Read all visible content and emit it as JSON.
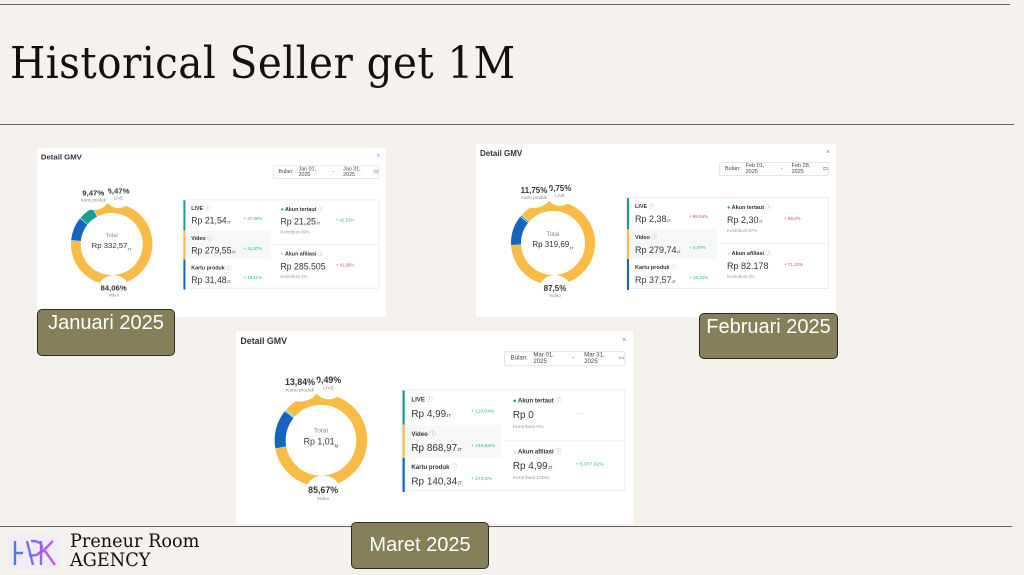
{
  "slide_title": "Historical Seller get 1M",
  "brand": {
    "line1": "Preneur Room",
    "line2": "AGENCY",
    "logo_text": "PR"
  },
  "colors": {
    "video": "#f8bb45",
    "kartu": "#1565c0",
    "live": "#1a9e8f",
    "up": "#2eb872",
    "down": "#e0475b"
  },
  "cards": [
    {
      "month_label": "Januari 2025",
      "title": "Detail GMV",
      "close": "×",
      "date_label": "Bulan:",
      "date_from": "Jan 01, 2025",
      "date_sep": "-",
      "date_to": "Jan 31, 2025",
      "total_label": "Total",
      "total_value": "Rp 332,57",
      "total_unit": "JT",
      "pct": {
        "kartu": "9,47%",
        "live": "6,47%",
        "video": "84,06%"
      },
      "pct_values": {
        "kartu": 9.47,
        "live": 6.47,
        "video": 84.06
      },
      "seg_labels": {
        "kartu": "Kartu produk",
        "live": "LIVE",
        "video": "Video"
      },
      "rows": [
        {
          "name": "LIVE",
          "value": "Rp 21,54",
          "unit": "JT",
          "change": "+ 37,99%",
          "dir": "up"
        },
        {
          "name": "Video",
          "value": "Rp 279,55",
          "unit": "JT",
          "change": "+ 31,57%",
          "dir": "up"
        },
        {
          "name": "Kartu produk",
          "value": "Rp 31,48",
          "unit": "JT",
          "change": "+ 10,11%",
          "dir": "up"
        }
      ],
      "accounts": [
        {
          "name": "Akun tertaut",
          "value": "Rp 21,25",
          "unit": "JT",
          "change": "+ 42,53%",
          "dir": "up",
          "kontribusi": "Kontribusi 99%"
        },
        {
          "name": "Akun afiliasi",
          "value": "Rp 285.505",
          "unit": "",
          "change": "+ 41,56%",
          "dir": "down",
          "kontribusi": "Kontribusi 1%"
        }
      ]
    },
    {
      "month_label": "Februari 2025",
      "title": "Detail GMV",
      "close": "×",
      "date_label": "Bulan:",
      "date_from": "Feb 01, 2025",
      "date_sep": "-",
      "date_to": "Feb 28, 2025",
      "total_label": "Total",
      "total_value": "Rp 319,69",
      "total_unit": "JT",
      "pct": {
        "kartu": "11,75%",
        "live": "0,75%",
        "video": "87,5%"
      },
      "pct_values": {
        "kartu": 11.75,
        "live": 0.75,
        "video": 87.5
      },
      "seg_labels": {
        "kartu": "Kartu produk",
        "live": "LIVE",
        "video": "Video"
      },
      "rows": [
        {
          "name": "LIVE",
          "value": "Rp 2,38",
          "unit": "JT",
          "change": "+ 88,94%",
          "dir": "down"
        },
        {
          "name": "Video",
          "value": "Rp 279,74",
          "unit": "JT",
          "change": "+ 0,07%",
          "dir": "up"
        },
        {
          "name": "Kartu produk",
          "value": "Rp 37,57",
          "unit": "JT",
          "change": "+ 19,34%",
          "dir": "up"
        }
      ],
      "accounts": [
        {
          "name": "Akun tertaut",
          "value": "Rp 2,30",
          "unit": "JT",
          "change": "+ 89,2%",
          "dir": "down",
          "kontribusi": "Kontribusi 97%"
        },
        {
          "name": "Akun afiliasi",
          "value": "Rp 82.178",
          "unit": "",
          "change": "+ 71,22%",
          "dir": "down",
          "kontribusi": "Kontribusi 3%"
        }
      ]
    },
    {
      "month_label": "Maret 2025",
      "title": "Detail GMV",
      "close": "×",
      "date_label": "Bulan:",
      "date_from": "Mar 01, 2025",
      "date_sep": "-",
      "date_to": "Mar 31, 2025",
      "total_label": "Total",
      "total_value": "Rp 1,01",
      "total_unit": "M",
      "pct": {
        "kartu": "13,84%",
        "live": "0,49%",
        "video": "85,67%"
      },
      "pct_values": {
        "kartu": 13.84,
        "live": 0.49,
        "video": 85.67
      },
      "seg_labels": {
        "kartu": "Kartu produk",
        "live": "LIVE",
        "video": "Video"
      },
      "rows": [
        {
          "name": "LIVE",
          "value": "Rp 4,99",
          "unit": "JT",
          "change": "+ 110,04%",
          "dir": "up"
        },
        {
          "name": "Video",
          "value": "Rp 868,97",
          "unit": "JT",
          "change": "+ 210,64%",
          "dir": "up"
        },
        {
          "name": "Kartu produk",
          "value": "Rp 140,34",
          "unit": "JT",
          "change": "+ 273,5%",
          "dir": "up"
        }
      ],
      "accounts": [
        {
          "name": "Akun tertaut",
          "value": "Rp 0",
          "unit": "",
          "change": "- --",
          "dir": "none",
          "kontribusi": "Kontribusi 0%"
        },
        {
          "name": "Akun afiliasi",
          "value": "Rp 4,99",
          "unit": "JT",
          "change": "+ 5.977,92%",
          "dir": "up",
          "kontribusi": "Kontribusi 100%"
        }
      ]
    }
  ]
}
